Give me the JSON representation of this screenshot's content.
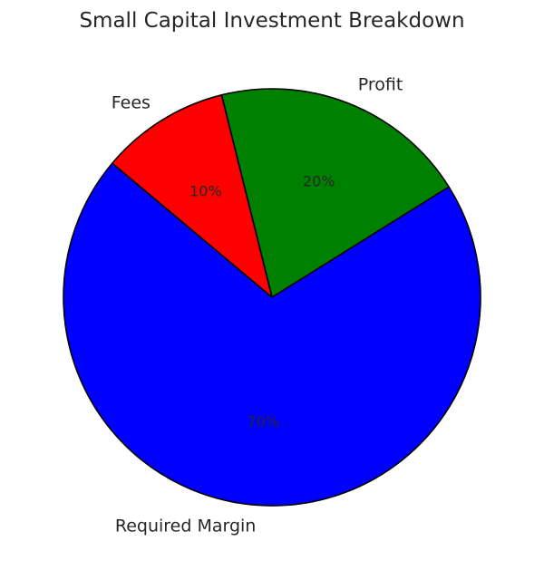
{
  "chart_data": {
    "type": "pie",
    "title": "Small Capital Investment Breakdown",
    "slices": [
      {
        "label": "Required Margin",
        "value": 70,
        "percent_label": "70%",
        "color": "#0000ff"
      },
      {
        "label": "Profit",
        "value": 20,
        "percent_label": "20%",
        "color": "#008000"
      },
      {
        "label": "Fees",
        "value": 10,
        "percent_label": "10%",
        "color": "#ff0000"
      }
    ],
    "start_angle_deg": 140,
    "direction": "counterclockwise",
    "edge_color": "#000000"
  }
}
